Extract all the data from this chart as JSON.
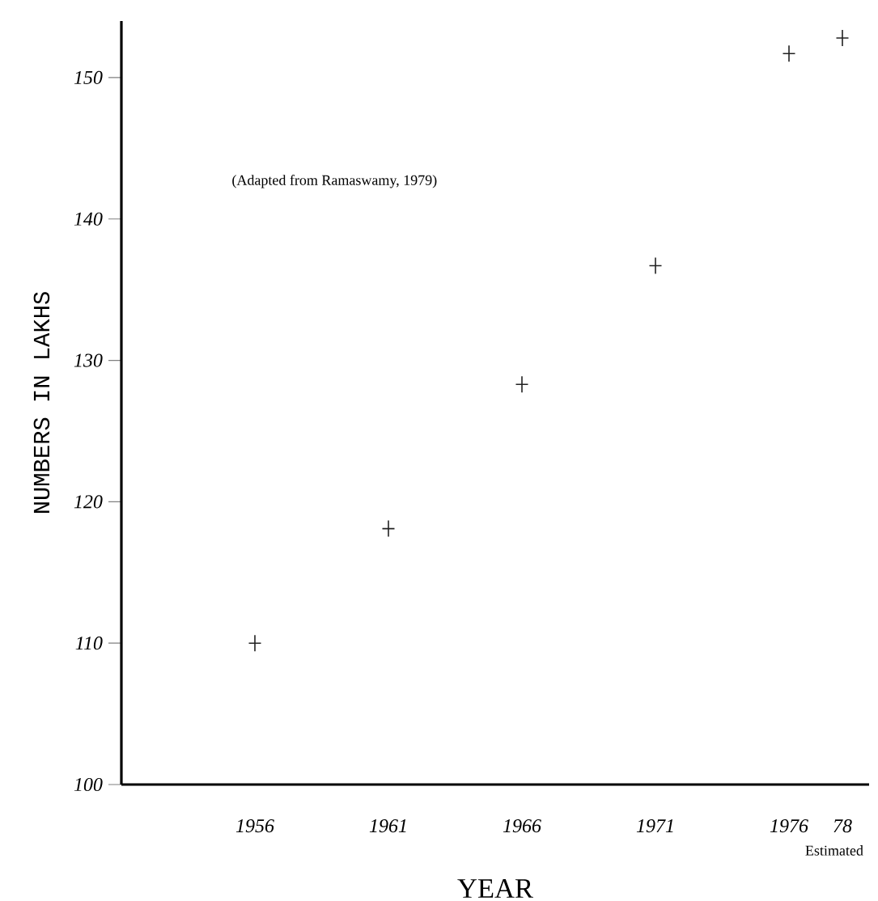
{
  "chart_data": {
    "type": "scatter",
    "xlabel": "YEAR",
    "ylabel": "NUMBERS IN LAKHS",
    "x": [
      1956,
      1961,
      1966,
      1971,
      1976,
      1978
    ],
    "values": [
      110,
      118.1,
      128.3,
      136.7,
      151.7,
      152.8
    ],
    "color": "#222222",
    "marker": "cross",
    "xlim": [
      1951,
      1979
    ],
    "ylim": [
      100,
      154
    ],
    "xticks": [
      1956,
      1961,
      1966,
      1971,
      1976,
      {
        "value": 1978,
        "label": "78"
      }
    ],
    "yticks": [
      100,
      110,
      120,
      130,
      140,
      150
    ],
    "annotations": [
      "(Adapted from Ramaswamy, 1979)",
      "Estimated"
    ]
  }
}
